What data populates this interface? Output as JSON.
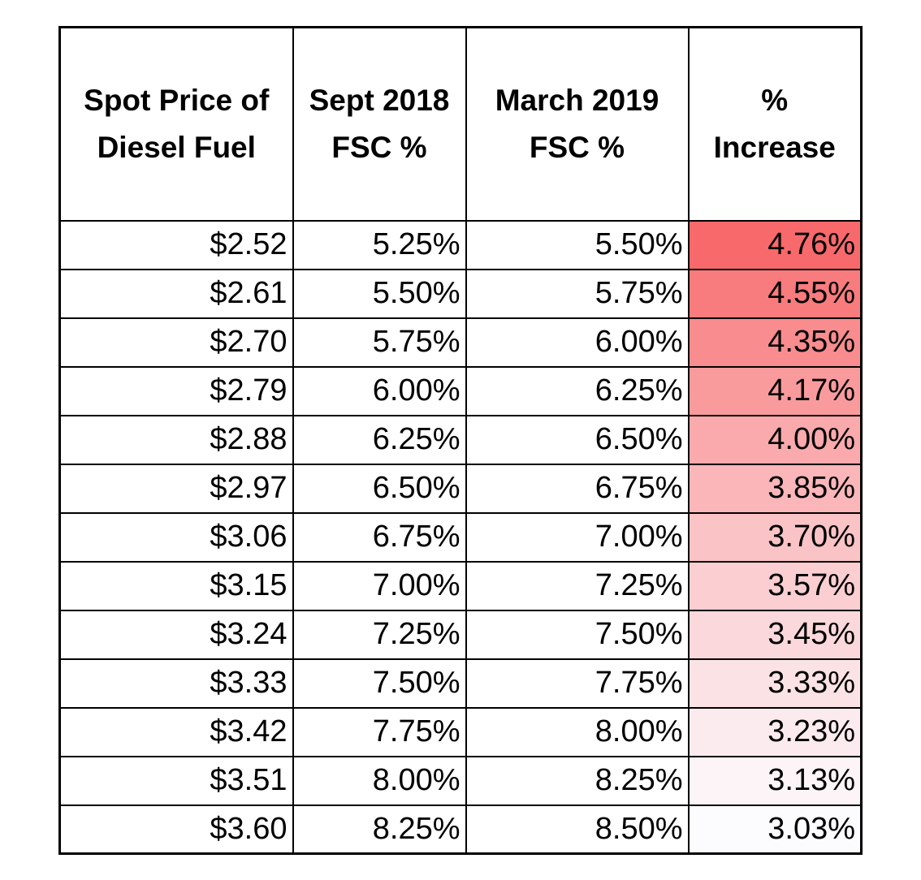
{
  "table": {
    "headers": [
      [
        "Spot Price of",
        "Diesel Fuel"
      ],
      [
        "Sept 2018",
        "FSC %"
      ],
      [
        "March 2019",
        "FSC %"
      ],
      [
        "%",
        "Increase"
      ]
    ],
    "rows": [
      {
        "spot_price": "$2.52",
        "sept_2018": "5.25%",
        "march_2019": "5.50%",
        "increase": "4.76%",
        "increase_value": 4.76
      },
      {
        "spot_price": "$2.61",
        "sept_2018": "5.50%",
        "march_2019": "5.75%",
        "increase": "4.55%",
        "increase_value": 4.55
      },
      {
        "spot_price": "$2.70",
        "sept_2018": "5.75%",
        "march_2019": "6.00%",
        "increase": "4.35%",
        "increase_value": 4.35
      },
      {
        "spot_price": "$2.79",
        "sept_2018": "6.00%",
        "march_2019": "6.25%",
        "increase": "4.17%",
        "increase_value": 4.17
      },
      {
        "spot_price": "$2.88",
        "sept_2018": "6.25%",
        "march_2019": "6.50%",
        "increase": "4.00%",
        "increase_value": 4.0
      },
      {
        "spot_price": "$2.97",
        "sept_2018": "6.50%",
        "march_2019": "6.75%",
        "increase": "3.85%",
        "increase_value": 3.85
      },
      {
        "spot_price": "$3.06",
        "sept_2018": "6.75%",
        "march_2019": "7.00%",
        "increase": "3.70%",
        "increase_value": 3.7
      },
      {
        "spot_price": "$3.15",
        "sept_2018": "7.00%",
        "march_2019": "7.25%",
        "increase": "3.57%",
        "increase_value": 3.57
      },
      {
        "spot_price": "$3.24",
        "sept_2018": "7.25%",
        "march_2019": "7.50%",
        "increase": "3.45%",
        "increase_value": 3.45
      },
      {
        "spot_price": "$3.33",
        "sept_2018": "7.50%",
        "march_2019": "7.75%",
        "increase": "3.33%",
        "increase_value": 3.33
      },
      {
        "spot_price": "$3.42",
        "sept_2018": "7.75%",
        "march_2019": "8.00%",
        "increase": "3.23%",
        "increase_value": 3.23
      },
      {
        "spot_price": "$3.51",
        "sept_2018": "8.00%",
        "march_2019": "8.25%",
        "increase": "3.13%",
        "increase_value": 3.13
      },
      {
        "spot_price": "$3.60",
        "sept_2018": "8.25%",
        "march_2019": "8.50%",
        "increase": "3.03%",
        "increase_value": 3.03
      }
    ],
    "heat_colors": {
      "high": "#f8696b",
      "low": "#fcfcff"
    }
  }
}
